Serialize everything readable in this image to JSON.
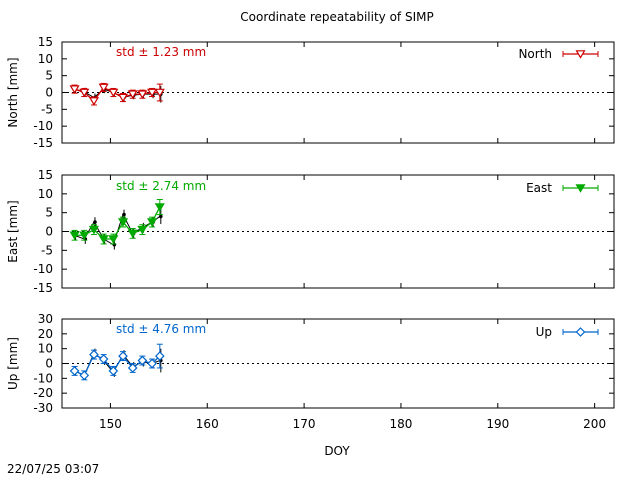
{
  "title": "Coordinate repeatability of SIMP",
  "timestamp": "22/07/25 03:07",
  "chart_data": {
    "type": "line",
    "xlabel": "DOY",
    "xlim": [
      145,
      202
    ],
    "xticks": [
      150,
      160,
      170,
      180,
      190,
      200
    ],
    "panels": [
      {
        "name": "North",
        "ylabel": "North [mm]",
        "ylim": [
          -15,
          15
        ],
        "yticks": [
          -15,
          -10,
          -5,
          0,
          5,
          10,
          15
        ],
        "std_label": "std ± 1.23 mm",
        "color": "#cc0000",
        "marker": "triangle-down-open",
        "x": [
          146.3,
          147.3,
          148.3,
          149.3,
          150.3,
          151.3,
          152.3,
          153.3,
          154.3,
          155.1
        ],
        "y": [
          1.0,
          0.0,
          -2.5,
          1.5,
          0.0,
          -1.5,
          -0.5,
          -0.5,
          0.0,
          0.0
        ],
        "err": [
          1.2,
          1.2,
          1.2,
          1.2,
          1.2,
          1.2,
          1.2,
          1.2,
          1.2,
          2.5
        ],
        "y_black": [
          1.0,
          0.2,
          -1.5,
          1.0,
          0.0,
          -1.5,
          -0.8,
          -0.5,
          -0.5,
          -0.5
        ]
      },
      {
        "name": "East",
        "ylabel": "East [mm]",
        "ylim": [
          -15,
          15
        ],
        "yticks": [
          -15,
          -10,
          -5,
          0,
          5,
          10,
          15
        ],
        "std_label": "std ± 2.74 mm",
        "color": "#00aa00",
        "marker": "triangle-down-filled",
        "x": [
          146.3,
          147.3,
          148.3,
          149.3,
          150.3,
          151.3,
          152.3,
          153.3,
          154.3,
          155.1
        ],
        "y": [
          -1.0,
          -1.0,
          0.5,
          -2.0,
          -2.0,
          2.5,
          -0.5,
          0.5,
          2.5,
          6.5
        ],
        "err": [
          1.3,
          1.3,
          1.3,
          1.3,
          1.3,
          1.3,
          1.3,
          1.3,
          1.3,
          2.0
        ],
        "y_black": [
          -1.0,
          -2.0,
          2.5,
          -2.0,
          -3.5,
          4.5,
          -0.5,
          1.0,
          2.5,
          4.0
        ]
      },
      {
        "name": "Up",
        "ylabel": "Up [mm]",
        "ylim": [
          -30,
          30
        ],
        "yticks": [
          -30,
          -20,
          -10,
          0,
          10,
          20,
          30
        ],
        "std_label": "std ± 4.76 mm",
        "color": "#0066cc",
        "marker": "diamond-open",
        "x": [
          146.3,
          147.3,
          148.3,
          149.3,
          150.3,
          151.3,
          152.3,
          153.3,
          154.3,
          155.1
        ],
        "y": [
          -5.0,
          -8.0,
          6.0,
          3.0,
          -5.0,
          5.0,
          -3.0,
          2.0,
          0.0,
          5.0
        ],
        "err": [
          3.0,
          3.0,
          3.0,
          3.0,
          3.0,
          3.0,
          3.0,
          3.0,
          3.0,
          8.0
        ],
        "y_black": [
          -5.0,
          -8.0,
          7.0,
          2.0,
          -6.0,
          6.0,
          -2.0,
          1.0,
          0.0,
          2.0
        ]
      }
    ]
  }
}
